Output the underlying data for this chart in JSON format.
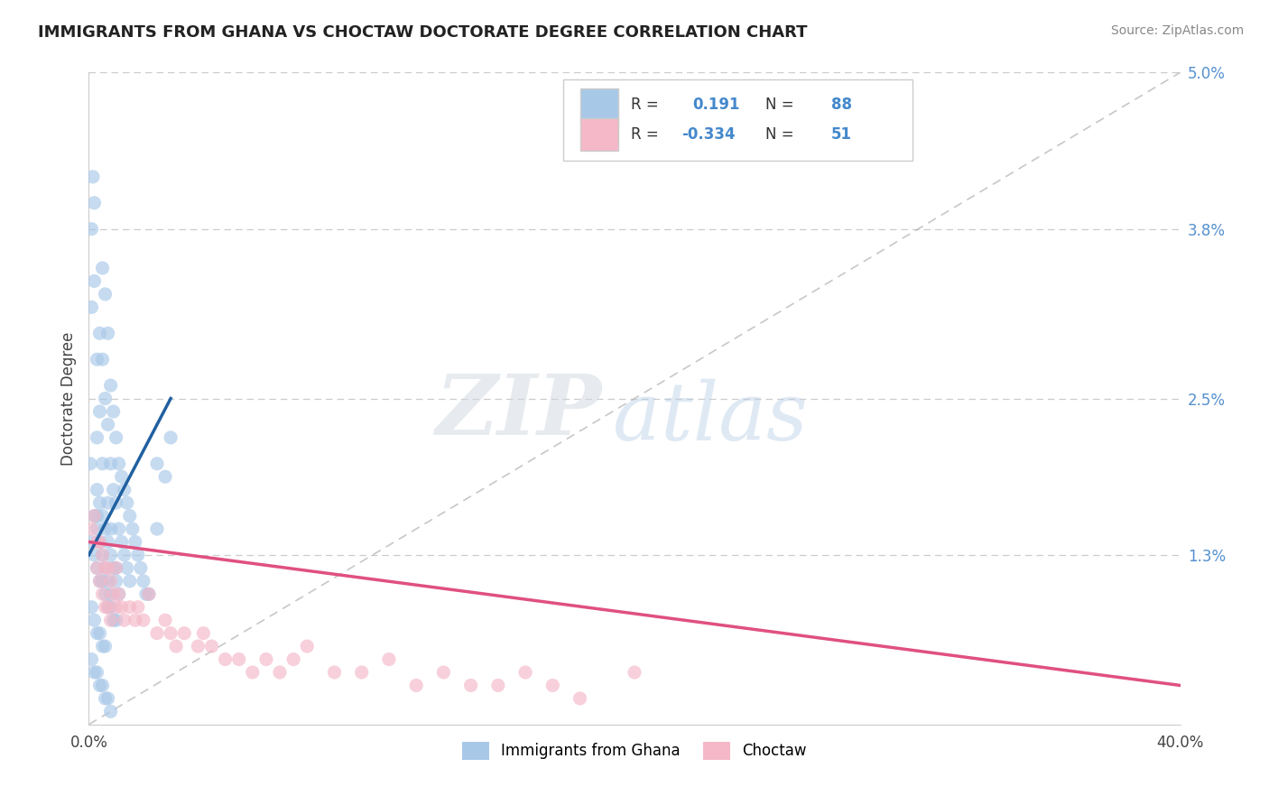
{
  "title": "IMMIGRANTS FROM GHANA VS CHOCTAW DOCTORATE DEGREE CORRELATION CHART",
  "source_text": "Source: ZipAtlas.com",
  "ylabel": "Doctorate Degree",
  "xlim": [
    0.0,
    0.4
  ],
  "ylim": [
    0.0,
    0.05
  ],
  "ytick_right": [
    0.013,
    0.025,
    0.038,
    0.05
  ],
  "ytick_right_labels": [
    "1.3%",
    "2.5%",
    "3.8%",
    "5.0%"
  ],
  "legend_label1": "Immigrants from Ghana",
  "legend_label2": "Choctaw",
  "blue_scatter_color": "#a8c8e8",
  "pink_scatter_color": "#f4b8c8",
  "trend_blue_color": "#2060a0",
  "trend_pink_color": "#e05080",
  "watermark_zip": "ZIP",
  "watermark_atlas": "atlas",
  "ghana_x": [
    0.0005,
    0.001,
    0.001,
    0.0015,
    0.002,
    0.002,
    0.003,
    0.003,
    0.003,
    0.004,
    0.004,
    0.005,
    0.005,
    0.005,
    0.006,
    0.006,
    0.007,
    0.007,
    0.007,
    0.008,
    0.008,
    0.008,
    0.009,
    0.009,
    0.01,
    0.01,
    0.01,
    0.011,
    0.011,
    0.012,
    0.012,
    0.013,
    0.013,
    0.014,
    0.014,
    0.015,
    0.015,
    0.016,
    0.017,
    0.018,
    0.019,
    0.02,
    0.021,
    0.022,
    0.025,
    0.025,
    0.028,
    0.03,
    0.001,
    0.002,
    0.003,
    0.004,
    0.005,
    0.006,
    0.007,
    0.008,
    0.009,
    0.01,
    0.002,
    0.003,
    0.004,
    0.005,
    0.006,
    0.007,
    0.008,
    0.001,
    0.002,
    0.003,
    0.004,
    0.005,
    0.006,
    0.003,
    0.004,
    0.005,
    0.006,
    0.007,
    0.008,
    0.009,
    0.01,
    0.011,
    0.001,
    0.002,
    0.003,
    0.004,
    0.005,
    0.006,
    0.007,
    0.008
  ],
  "ghana_y": [
    0.02,
    0.038,
    0.032,
    0.042,
    0.04,
    0.034,
    0.028,
    0.022,
    0.016,
    0.03,
    0.024,
    0.035,
    0.028,
    0.02,
    0.033,
    0.025,
    0.03,
    0.023,
    0.017,
    0.026,
    0.02,
    0.015,
    0.024,
    0.018,
    0.022,
    0.017,
    0.012,
    0.02,
    0.015,
    0.019,
    0.014,
    0.018,
    0.013,
    0.017,
    0.012,
    0.016,
    0.011,
    0.015,
    0.014,
    0.013,
    0.012,
    0.011,
    0.01,
    0.01,
    0.02,
    0.015,
    0.019,
    0.022,
    0.014,
    0.013,
    0.012,
    0.011,
    0.011,
    0.01,
    0.009,
    0.009,
    0.008,
    0.008,
    0.016,
    0.015,
    0.014,
    0.013,
    0.012,
    0.011,
    0.01,
    0.009,
    0.008,
    0.007,
    0.007,
    0.006,
    0.006,
    0.018,
    0.017,
    0.016,
    0.015,
    0.014,
    0.013,
    0.012,
    0.011,
    0.01,
    0.005,
    0.004,
    0.004,
    0.003,
    0.003,
    0.002,
    0.002,
    0.001
  ],
  "choctaw_x": [
    0.001,
    0.002,
    0.003,
    0.003,
    0.004,
    0.004,
    0.005,
    0.005,
    0.006,
    0.006,
    0.007,
    0.007,
    0.008,
    0.008,
    0.009,
    0.01,
    0.01,
    0.011,
    0.012,
    0.013,
    0.015,
    0.017,
    0.018,
    0.02,
    0.022,
    0.025,
    0.028,
    0.03,
    0.032,
    0.035,
    0.04,
    0.042,
    0.045,
    0.05,
    0.055,
    0.06,
    0.065,
    0.07,
    0.075,
    0.08,
    0.09,
    0.1,
    0.11,
    0.12,
    0.13,
    0.14,
    0.15,
    0.16,
    0.17,
    0.18,
    0.2
  ],
  "choctaw_y": [
    0.015,
    0.016,
    0.014,
    0.012,
    0.014,
    0.011,
    0.013,
    0.01,
    0.012,
    0.009,
    0.012,
    0.009,
    0.011,
    0.008,
    0.01,
    0.012,
    0.009,
    0.01,
    0.009,
    0.008,
    0.009,
    0.008,
    0.009,
    0.008,
    0.01,
    0.007,
    0.008,
    0.007,
    0.006,
    0.007,
    0.006,
    0.007,
    0.006,
    0.005,
    0.005,
    0.004,
    0.005,
    0.004,
    0.005,
    0.006,
    0.004,
    0.004,
    0.005,
    0.003,
    0.004,
    0.003,
    0.003,
    0.004,
    0.003,
    0.002,
    0.004
  ],
  "blue_trend_x0": 0.0,
  "blue_trend_x1": 0.03,
  "blue_trend_y0": 0.013,
  "blue_trend_y1": 0.025,
  "pink_trend_x0": 0.0,
  "pink_trend_x1": 0.4,
  "pink_trend_y0": 0.014,
  "pink_trend_y1": 0.003
}
